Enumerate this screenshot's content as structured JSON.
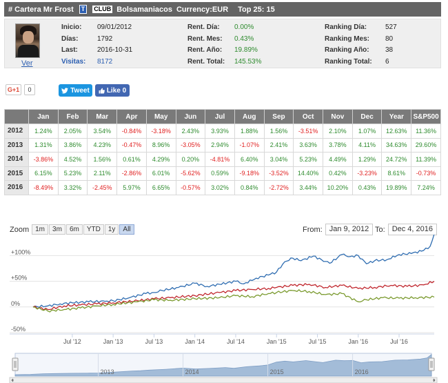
{
  "header": {
    "title": "# Cartera Mr Frost",
    "t_badge": "T",
    "club_badge": "CLUB",
    "user": "Bolsamaniacos",
    "currency": "Currency:EUR",
    "top": "Top 25: 15"
  },
  "profile": {
    "ver_link": "Ver",
    "col1": [
      {
        "label": "Inicio:",
        "value": "09/01/2012"
      },
      {
        "label": "Días:",
        "value": "1792"
      },
      {
        "label": "Last:",
        "value": "2016-10-31"
      },
      {
        "label": "Visitas:",
        "value": "8172"
      }
    ],
    "col2": [
      {
        "label": "Rent. Día:",
        "value": "0.00%"
      },
      {
        "label": "Rent. Mes:",
        "value": "0.43%"
      },
      {
        "label": "Rent. Año:",
        "value": "19.89%"
      },
      {
        "label": "Rent. Total:",
        "value": "145.53%"
      }
    ],
    "col3": [
      {
        "label": "Ranking Día:",
        "value": "527"
      },
      {
        "label": "Ranking Mes:",
        "value": "80"
      },
      {
        "label": "Ranking Año:",
        "value": "38"
      },
      {
        "label": "Ranking Total:",
        "value": "6"
      }
    ]
  },
  "social": {
    "gplus_label": "G+1",
    "gplus_count": "0",
    "tweet_label": "Tweet",
    "like_label": "Like 0"
  },
  "returns_table": {
    "headers": [
      "Jan",
      "Feb",
      "Mar",
      "Apr",
      "May",
      "Jun",
      "Jul",
      "Aug",
      "Sep",
      "Oct",
      "Nov",
      "Dec",
      "Year",
      "S&P500"
    ],
    "rows": [
      {
        "year": "2012",
        "cells": [
          "1.24%",
          "2.05%",
          "3.54%",
          "-0.84%",
          "-3.18%",
          "2.43%",
          "3.93%",
          "1.88%",
          "1.56%",
          "-3.51%",
          "2.10%",
          "1.07%",
          "12.63%",
          "11.36%"
        ]
      },
      {
        "year": "2013",
        "cells": [
          "1.31%",
          "3.86%",
          "4.23%",
          "-0.47%",
          "8.96%",
          "-3.05%",
          "2.94%",
          "-1.07%",
          "2.41%",
          "3.63%",
          "3.78%",
          "4.11%",
          "34.63%",
          "29.60%"
        ]
      },
      {
        "year": "2014",
        "cells": [
          "-3.86%",
          "4.52%",
          "1.56%",
          "0.61%",
          "4.29%",
          "0.20%",
          "-4.81%",
          "6.40%",
          "3.04%",
          "5.23%",
          "4.49%",
          "1.29%",
          "24.72%",
          "11.39%"
        ]
      },
      {
        "year": "2015",
        "cells": [
          "6.15%",
          "5.23%",
          "2.11%",
          "-2.86%",
          "6.01%",
          "-5.62%",
          "0.59%",
          "-9.18%",
          "-3.52%",
          "14.40%",
          "0.42%",
          "-3.23%",
          "8.61%",
          "-0.73%"
        ]
      },
      {
        "year": "2016",
        "cells": [
          "-8.49%",
          "3.32%",
          "-2.45%",
          "5.97%",
          "6.65%",
          "-0.57%",
          "3.02%",
          "0.84%",
          "-2.72%",
          "3.44%",
          "10.20%",
          "0.43%",
          "19.89%",
          "7.24%"
        ]
      }
    ]
  },
  "chart_controls": {
    "zoom_label": "Zoom",
    "zoom_buttons": [
      "1m",
      "3m",
      "6m",
      "YTD",
      "1y",
      "All"
    ],
    "active_zoom": "All",
    "from_label": "From:",
    "from_value": "Jan 9, 2012",
    "to_label": "To:",
    "to_value": "Dec 4, 2016"
  },
  "chart_data": {
    "type": "line",
    "y_axis_labels": [
      "+100%",
      "+50%",
      "0%",
      "-50%"
    ],
    "y_ticks": [
      100,
      50,
      0,
      -50
    ],
    "ylim": [
      -50,
      130
    ],
    "x_axis_labels": [
      "Jul '12",
      "Jan '13",
      "Jul '13",
      "Jan '14",
      "Jul '14",
      "Jan '15",
      "Jul '15",
      "Jan '16",
      "Jul '16"
    ],
    "x_tick_dates": [
      2012.5,
      2013.0,
      2013.5,
      2014.0,
      2014.5,
      2015.0,
      2015.5,
      2016.0,
      2016.5
    ],
    "xlim": [
      2012.02,
      2016.93
    ],
    "navigator_labels": [
      "2013",
      "2014",
      "2015",
      "2016"
    ],
    "navigator_dates": [
      2013.0,
      2014.0,
      2015.0,
      2016.0
    ],
    "colors": {
      "portfolio": "#2f6db1",
      "benchmark": "#c0262d",
      "third": "#7a9a2e",
      "navigator": "#a3bcd8"
    },
    "series": [
      {
        "color_key": "portfolio",
        "x": [
          2012.02,
          2012.2,
          2012.35,
          2012.5,
          2012.7,
          2012.9,
          2013.0,
          2013.2,
          2013.4,
          2013.5,
          2013.6,
          2013.8,
          2014.0,
          2014.15,
          2014.3,
          2014.5,
          2014.6,
          2014.75,
          2014.9,
          2015.0,
          2015.1,
          2015.2,
          2015.3,
          2015.45,
          2015.55,
          2015.65,
          2015.8,
          2015.9,
          2016.0,
          2016.1,
          2016.2,
          2016.35,
          2016.5,
          2016.65,
          2016.8,
          2016.88,
          2016.93
        ],
        "y": [
          0,
          2,
          6,
          8,
          10,
          11,
          12,
          18,
          26,
          28,
          32,
          38,
          46,
          40,
          44,
          50,
          45,
          56,
          62,
          68,
          88,
          95,
          90,
          99,
          92,
          85,
          102,
          98,
          100,
          84,
          90,
          92,
          102,
          104,
          110,
          118,
          142
        ]
      },
      {
        "color_key": "benchmark",
        "x": [
          2012.02,
          2012.2,
          2012.4,
          2012.6,
          2012.8,
          2013.0,
          2013.3,
          2013.5,
          2013.7,
          2014.0,
          2014.3,
          2014.5,
          2014.7,
          2014.9,
          2015.0,
          2015.2,
          2015.4,
          2015.6,
          2015.8,
          2016.0,
          2016.2,
          2016.4,
          2016.6,
          2016.8,
          2016.93
        ],
        "y": [
          0,
          -5,
          2,
          4,
          6,
          8,
          12,
          16,
          18,
          22,
          28,
          32,
          34,
          36,
          38,
          42,
          44,
          38,
          42,
          36,
          38,
          42,
          40,
          43,
          50
        ]
      },
      {
        "color_key": "third",
        "x": [
          2012.02,
          2012.2,
          2012.4,
          2012.6,
          2012.8,
          2013.0,
          2013.3,
          2013.5,
          2013.7,
          2014.0,
          2014.3,
          2014.5,
          2014.7,
          2014.9,
          2015.0,
          2015.2,
          2015.4,
          2015.6,
          2015.8,
          2016.0,
          2016.1,
          2016.3,
          2016.5,
          2016.7,
          2016.93
        ],
        "y": [
          0,
          -8,
          -5,
          -2,
          2,
          5,
          10,
          14,
          13,
          16,
          18,
          22,
          20,
          26,
          28,
          32,
          30,
          24,
          26,
          10,
          14,
          18,
          17,
          18,
          19
        ]
      }
    ]
  }
}
